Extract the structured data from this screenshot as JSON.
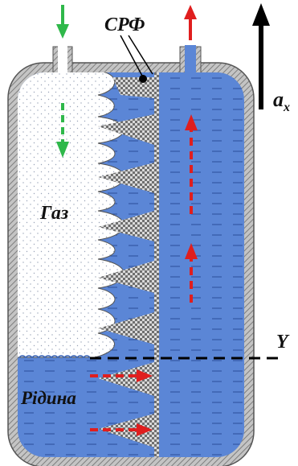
{
  "labels": {
    "srf": "СРФ",
    "gas": "Газ",
    "liquid": "Рідина",
    "axis_y": "Y",
    "accel_base": "a",
    "accel_sub": "x"
  },
  "colors": {
    "vessel_wall": "#9a9a9a",
    "liquid": "#5b86d6",
    "gas": "#ffffff",
    "foam_mesh": "#8c8c8c",
    "inflow_arrow": "#2fb84a",
    "flow_arrow": "#e01e1e",
    "axis": "#000000"
  },
  "icons": {
    "inflow": "arrow-down-green",
    "outflow": "arrow-up-red",
    "acceleration": "arrow-up-black"
  }
}
